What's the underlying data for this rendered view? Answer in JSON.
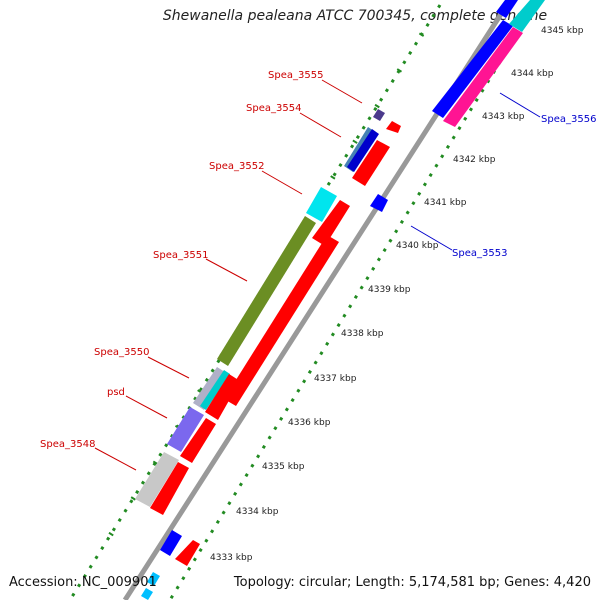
{
  "title": "Shewanella pealeana ATCC 700345, complete genome",
  "footer": {
    "accession": "Accession: NC_009901",
    "summary": "Topology: circular; Length: 5,174,581 bp; Genes: 4,420"
  },
  "ticks": [
    "4333 kbp",
    "4334 kbp",
    "4335 kbp",
    "4336 kbp",
    "4337 kbp",
    "4338 kbp",
    "4339 kbp",
    "4340 kbp",
    "4341 kbp",
    "4342 kbp",
    "4343 kbp",
    "4344 kbp",
    "4345 kbp"
  ],
  "gene_labels": {
    "top": [
      "Spea_3555",
      "Spea_3554",
      "Spea_3552",
      "Spea_3551",
      "Spea_3550",
      "psd",
      "Spea_3548"
    ],
    "bottom": [
      "Spea_3556",
      "Spea_3553"
    ]
  },
  "colors": {
    "label_top": "#cc0000",
    "label_bottom": "#0000cc",
    "red": "#ff0000",
    "blue": "#0000ff",
    "cyan": "#00cccc",
    "pink": "#ff1493",
    "olive": "#6b8e23",
    "slate": "#7b68ee",
    "grey": "#c0c0c0",
    "dotted": "#228b22",
    "backbone": "#999999"
  }
}
